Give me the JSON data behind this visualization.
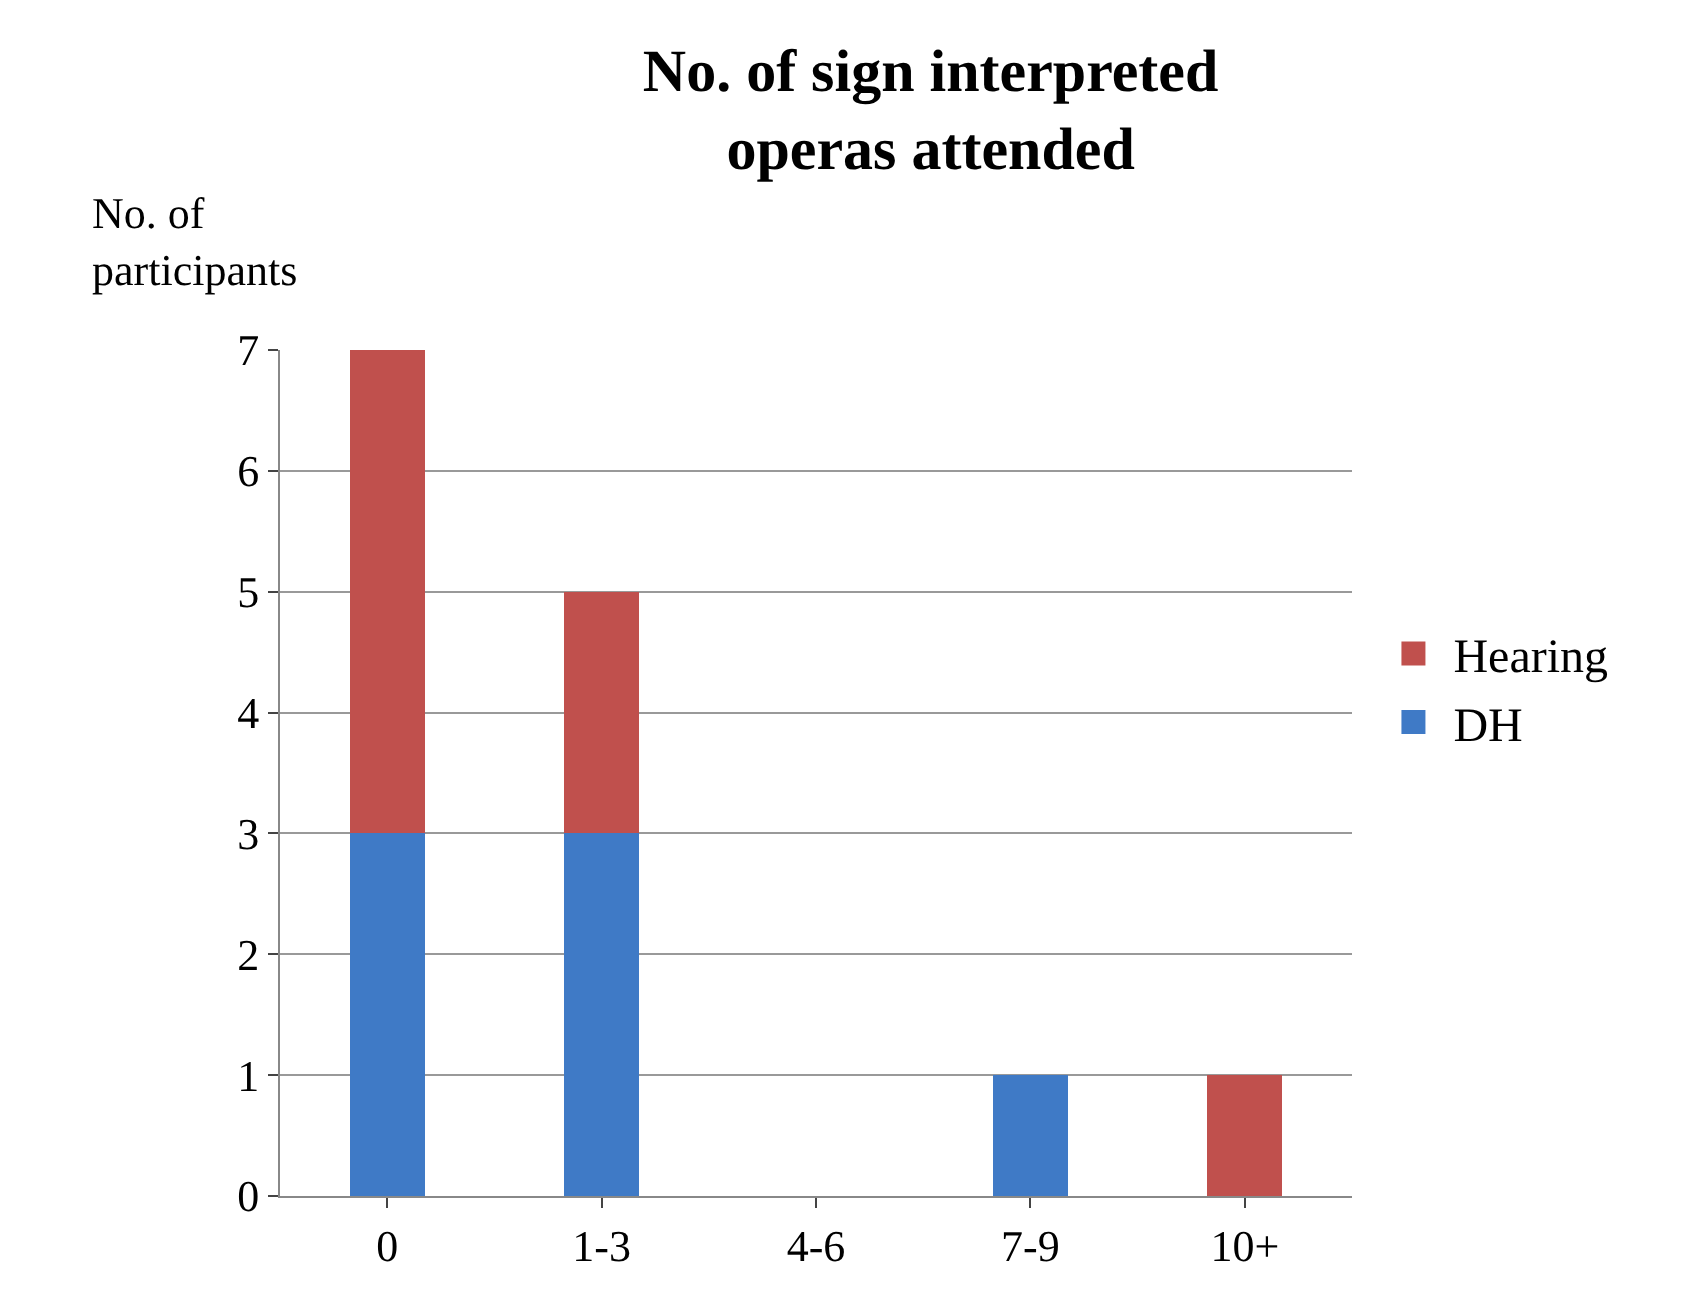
{
  "chart_data": {
    "type": "bar",
    "title": "No. of sign interpreted operas attended",
    "ylabel": "No. of participants",
    "categories": [
      "0",
      "1-3",
      "4-6",
      "7-9",
      "10+"
    ],
    "stacked": true,
    "series": [
      {
        "name": "DH",
        "color": "#3f7ac6",
        "values": [
          3,
          3,
          0,
          1,
          0
        ]
      },
      {
        "name": "Hearing",
        "color": "#c0504d",
        "values": [
          4,
          2,
          0,
          0,
          1
        ]
      }
    ],
    "ylim": [
      0,
      7
    ],
    "yticks": [
      0,
      1,
      2,
      3,
      4,
      5,
      6,
      7
    ],
    "grid": "y",
    "legend": "right"
  }
}
